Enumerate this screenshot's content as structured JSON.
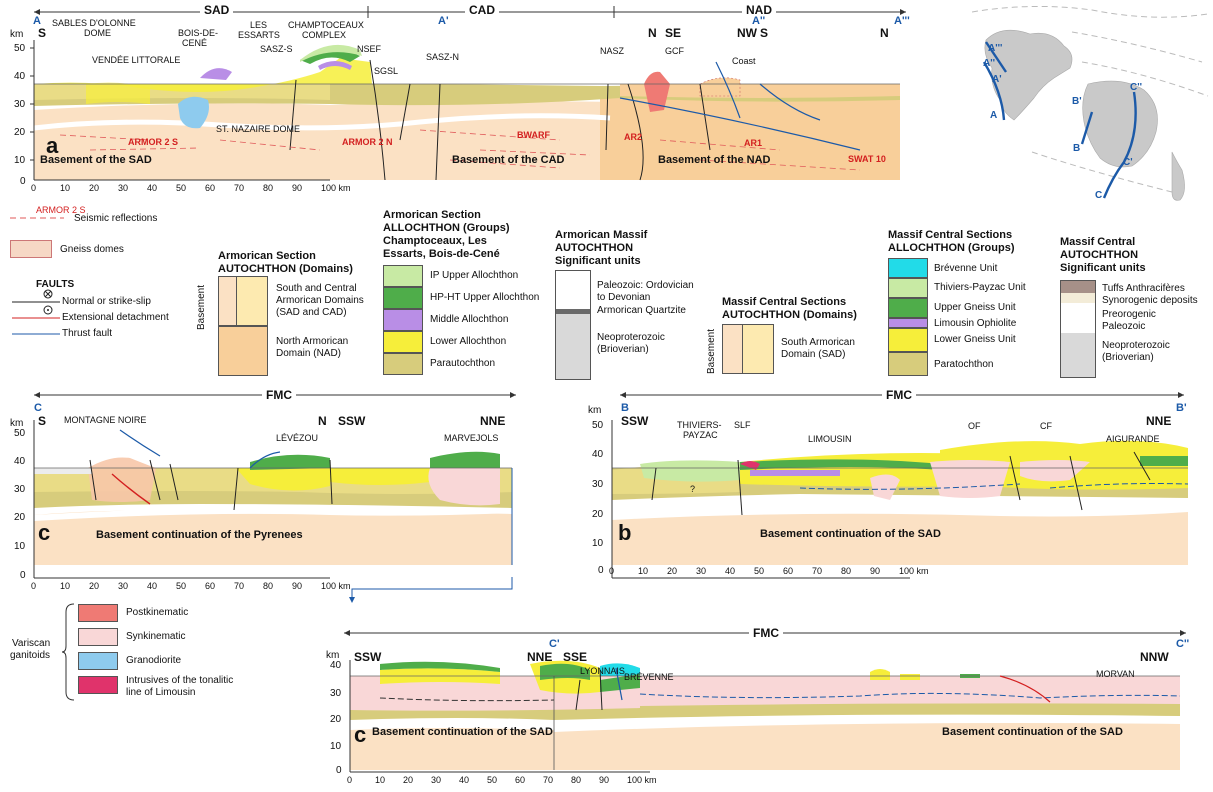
{
  "sections": {
    "top": {
      "domains": [
        "SAD",
        "CAD",
        "NAD"
      ],
      "ends": {
        "a": "A",
        "a1": "A'",
        "a2": "A''",
        "a3": "A'''"
      },
      "orient": [
        "S",
        "N",
        "SE",
        "NW",
        "S",
        "N"
      ],
      "panel_label": "a",
      "labels": [
        "SABLES D'OLONNE",
        "DOME",
        "VENDÉE LITTORALE",
        "BOIS-DE-",
        "CENÉ",
        "LES",
        "ESSARTS",
        "CHAMPTOCEAUX",
        "COMPLEX",
        "SASZ-S",
        "NSEF",
        "SGSL",
        "SASZ-N",
        "NASZ",
        "GCF",
        "Coast",
        "ST. NAZAIRE DOME",
        "Basement of the SAD",
        "Basement of the CAD",
        "Basement of the NAD"
      ],
      "seismic": [
        "ARMOR 2 S",
        "ARMOR 2 N",
        "BWARF",
        "AR2",
        "AR1",
        "SWAT 10"
      ],
      "km_label": "km",
      "y_ticks": [
        "50",
        "40",
        "30",
        "20",
        "10",
        "0"
      ],
      "x_ticks": [
        "0",
        "10",
        "20",
        "30",
        "40",
        "50",
        "60",
        "70",
        "80",
        "90",
        "100 km"
      ]
    },
    "mid_left": {
      "title": "FMC",
      "ends": {
        "start": "C",
        "end": ""
      },
      "orient": [
        "S",
        "N",
        "SSW",
        "NNE"
      ],
      "labels": [
        "MONTAGNE NOIRE",
        "LÉVÉZOU",
        "MARVEJOLS"
      ],
      "basement": "Basement continuation of the Pyrenees",
      "panel_label": "c",
      "km_label": "km",
      "y_ticks": [
        "50",
        "40",
        "30",
        "20",
        "10",
        "0"
      ],
      "x_ticks": [
        "0",
        "10",
        "20",
        "30",
        "40",
        "50",
        "60",
        "70",
        "80",
        "90",
        "100 km"
      ]
    },
    "mid_right": {
      "title": "FMC",
      "ends": {
        "start": "B",
        "end": "B'"
      },
      "orient": [
        "SSW",
        "NNE"
      ],
      "labels": [
        "THIVIERS-",
        "PAYZAC",
        "SLF",
        "LIMOUSIN",
        "OF",
        "CF",
        "AIGURANDE",
        "?"
      ],
      "basement": "Basement continuation of the SAD",
      "panel_label": "b",
      "km_label": "km",
      "y_ticks": [
        "50",
        "40",
        "30",
        "20",
        "10",
        "0"
      ],
      "x_ticks": [
        "0",
        "10",
        "20",
        "30",
        "40",
        "50",
        "60",
        "70",
        "80",
        "90",
        "100 km"
      ]
    },
    "bottom": {
      "title": "FMC",
      "ends": {
        "start": "C'",
        "end": "C''"
      },
      "orient": [
        "SSW",
        "NNE",
        "SSE",
        "NNW"
      ],
      "labels": [
        "LYONNAIS",
        "BRÉVENNE",
        "MORVAN"
      ],
      "basement_left": "Basement continuation of the SAD",
      "basement_right": "Basement continuation of the SAD",
      "panel_label": "c",
      "km_label": "km",
      "y_ticks": [
        "40",
        "30",
        "20",
        "10",
        "0"
      ],
      "x_ticks": [
        "0",
        "10",
        "20",
        "30",
        "40",
        "50",
        "60",
        "70",
        "80",
        "90",
        "100 km"
      ]
    }
  },
  "map": {
    "labels": [
      "A'''",
      "A''",
      "A'",
      "A",
      "B'",
      "B",
      "C''",
      "C'",
      "C"
    ]
  },
  "legends": {
    "seismic": {
      "sample": "ARMOR 2 S",
      "label": "Seismic reflections"
    },
    "gneiss": {
      "label": "Gneiss domes"
    },
    "faults": {
      "title": "FAULTS",
      "items": [
        "Normal or strike-slip",
        "Extensional detachment",
        "Thrust fault"
      ]
    },
    "armorican_autochthon": {
      "title1": "Armorican Section",
      "title2": "AUTOCHTHON (Domains)",
      "side": "Basement",
      "items": [
        "South and Central Armorican Domains (SAD and CAD)",
        "North Armorican Domain (NAD)"
      ]
    },
    "armorican_allochthon": {
      "title1": "Armorican Section",
      "title2": "ALLOCHTHON (Groups)",
      "title3": "Champtoceaux, Les",
      "title4": "Essarts, Bois-de-Cené",
      "items": [
        "IP Upper Allochthon",
        "HP-HT Upper Allochthon",
        "Middle Allochthon",
        "Lower Allochthon",
        "Parautochthon"
      ]
    },
    "armorican_massif": {
      "title1": "Armorican Massif",
      "title2": "AUTOCHTHON",
      "title3": "Significant units",
      "items": [
        "Paleozoic: Ordovician",
        "to Devonian",
        "Armorican Quartzite",
        "Neoproterozoic",
        "(Brioverian)"
      ]
    },
    "mc_autochthon": {
      "title1": "Massif Central Sections",
      "title2": "AUTOCHTHON (Domains)",
      "side": "Basement",
      "items": [
        "South Armorican",
        "Domain (SAD)"
      ]
    },
    "mc_allochthon": {
      "title1": "Massif Central Sections",
      "title2": "ALLOCHTHON (Groups)",
      "items": [
        "Brévenne Unit",
        "Thiviers-Payzac Unit",
        "Upper Gneiss Unit",
        "Limousin Ophiolite",
        "Lower Gneiss Unit",
        "Paratochthon"
      ]
    },
    "mc_units": {
      "title1": "Massif Central",
      "title2": "AUTOCHTHON",
      "title3": "Significant units",
      "items": [
        "Tuffs Anthracifères",
        "Synorogenic deposits",
        "Preorogenic",
        "Paleozoic",
        "Neoproterozoic",
        "(Brioverian)"
      ]
    },
    "granitoids": {
      "side1": "Variscan",
      "side2": "ganitoids",
      "items": [
        "Postkinematic",
        "Synkinematic",
        "Granodiorite",
        "Intrusives of the tonalitic",
        "line of Limousin"
      ]
    }
  },
  "colors": {
    "basement_sad": "#fbe1c4",
    "basement_nad": "#f8cf9a",
    "parautochthon": "#d7cc7c",
    "lower_allo": "#f6ee3a",
    "middle_allo": "#b98ee6",
    "hp_upper": "#4fad4a",
    "ip_upper": "#c8eaa4",
    "brevenne": "#22dbe8",
    "thiviers": "#c8eaa4",
    "limousin_oph": "#b98ee6",
    "postkin": "#ef7a74",
    "synkin": "#f9d7d7",
    "granodiorite": "#8ecbee",
    "tonalitic": "#e0336b",
    "neoprot": "#d9d9d9",
    "tuffs": "#a69088",
    "blue": "#1c5aa8",
    "red": "#d32020"
  }
}
